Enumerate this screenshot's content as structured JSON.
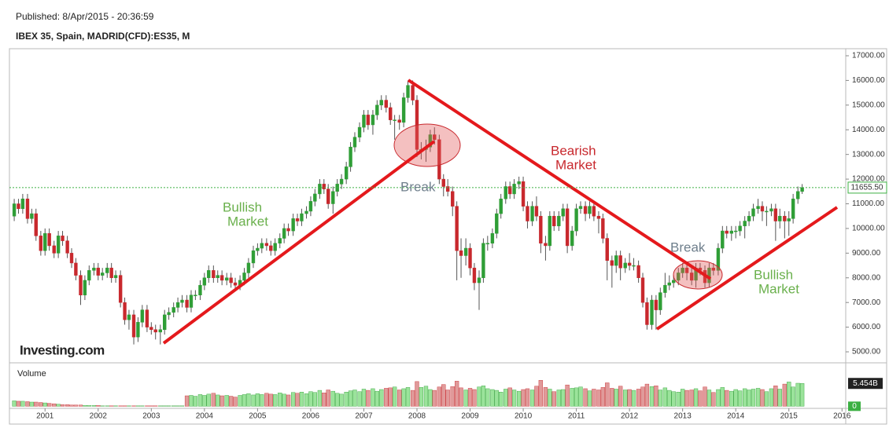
{
  "chart_data": {
    "type": "candlestick",
    "subtitle": "Published: 8/Apr/2015 - 20:36:59",
    "title": "IBEX 35, Spain, MADRID(CFD):ES35, M",
    "logo": "Investing.com",
    "up_color": "#2f9e36",
    "down_color": "#c8282d",
    "xlim": [
      2000.33,
      2016.07
    ],
    "xticks": [
      2001,
      2002,
      2003,
      2004,
      2005,
      2006,
      2007,
      2008,
      2009,
      2010,
      2011,
      2012,
      2013,
      2014,
      2015,
      2016
    ],
    "ylim": [
      4555,
      17286
    ],
    "yticks": [
      {
        "value": 5000,
        "label": "5000.00"
      },
      {
        "value": 6000,
        "label": "6000.00"
      },
      {
        "value": 7000,
        "label": "7000.00"
      },
      {
        "value": 8000,
        "label": "8000.00"
      },
      {
        "value": 9000,
        "label": "9000.00"
      },
      {
        "value": 10000,
        "label": "10000.00"
      },
      {
        "value": 11000,
        "label": "11000.00"
      },
      {
        "value": 12000,
        "label": "12000.00"
      },
      {
        "value": 13000,
        "label": "13000.00"
      },
      {
        "value": 14000,
        "label": "14000.00"
      },
      {
        "value": 15000,
        "label": "15000.00"
      },
      {
        "value": 16000,
        "label": "16000.00"
      },
      {
        "value": 17000,
        "label": "17000.00"
      }
    ],
    "last_close_label": "11655.50",
    "x": [
      2000.42,
      2000.5,
      2000.58,
      2000.67,
      2000.75,
      2000.83,
      2000.92,
      2001,
      2001.08,
      2001.17,
      2001.25,
      2001.33,
      2001.42,
      2001.5,
      2001.58,
      2001.67,
      2001.75,
      2001.83,
      2001.92,
      2002,
      2002.08,
      2002.17,
      2002.25,
      2002.33,
      2002.42,
      2002.5,
      2002.58,
      2002.67,
      2002.75,
      2002.83,
      2002.92,
      2003,
      2003.08,
      2003.17,
      2003.25,
      2003.33,
      2003.42,
      2003.5,
      2003.58,
      2003.67,
      2003.75,
      2003.83,
      2003.92,
      2004,
      2004.08,
      2004.17,
      2004.25,
      2004.33,
      2004.42,
      2004.5,
      2004.58,
      2004.67,
      2004.75,
      2004.83,
      2004.92,
      2005,
      2005.08,
      2005.17,
      2005.25,
      2005.33,
      2005.42,
      2005.5,
      2005.58,
      2005.67,
      2005.75,
      2005.83,
      2005.92,
      2006,
      2006.08,
      2006.17,
      2006.25,
      2006.33,
      2006.42,
      2006.5,
      2006.58,
      2006.67,
      2006.75,
      2006.83,
      2006.92,
      2007,
      2007.08,
      2007.17,
      2007.25,
      2007.33,
      2007.42,
      2007.5,
      2007.58,
      2007.67,
      2007.75,
      2007.83,
      2007.92,
      2008,
      2008.08,
      2008.17,
      2008.25,
      2008.33,
      2008.42,
      2008.5,
      2008.58,
      2008.67,
      2008.75,
      2008.83,
      2008.92,
      2009,
      2009.08,
      2009.17,
      2009.25,
      2009.33,
      2009.42,
      2009.5,
      2009.58,
      2009.67,
      2009.75,
      2009.83,
      2009.92,
      2010,
      2010.08,
      2010.17,
      2010.25,
      2010.33,
      2010.42,
      2010.5,
      2010.58,
      2010.67,
      2010.75,
      2010.83,
      2010.92,
      2011,
      2011.08,
      2011.17,
      2011.25,
      2011.33,
      2011.42,
      2011.5,
      2011.58,
      2011.67,
      2011.75,
      2011.83,
      2011.92,
      2012,
      2012.08,
      2012.17,
      2012.25,
      2012.33,
      2012.42,
      2012.5,
      2012.58,
      2012.67,
      2012.75,
      2012.83,
      2012.92,
      2013,
      2013.08,
      2013.17,
      2013.25,
      2013.33,
      2013.42,
      2013.5,
      2013.58,
      2013.67,
      2013.75,
      2013.83,
      2013.92,
      2014,
      2014.08,
      2014.17,
      2014.25,
      2014.33,
      2014.42,
      2014.5,
      2014.58,
      2014.67,
      2014.75,
      2014.83,
      2014.92,
      2015,
      2015.08,
      2015.17,
      2015.25
    ],
    "open": [
      10500,
      11000,
      10800,
      11200,
      10400,
      10600,
      9700,
      9100,
      9800,
      9300,
      9000,
      9700,
      9500,
      9000,
      8600,
      8100,
      7300,
      7900,
      8300,
      8400,
      8100,
      8200,
      8400,
      8000,
      8100,
      7000,
      6300,
      6500,
      5600,
      6200,
      6700,
      6000,
      5900,
      5800,
      5900,
      6500,
      6600,
      6800,
      7000,
      7100,
      6800,
      7300,
      7300,
      7700,
      8000,
      8300,
      8000,
      8100,
      7900,
      8000,
      7800,
      7700,
      7900,
      8200,
      8600,
      9100,
      9200,
      9400,
      9300,
      9100,
      9400,
      9600,
      10000,
      9900,
      10400,
      10300,
      10600,
      10700,
      11100,
      11400,
      11800,
      11600,
      11000,
      11500,
      11800,
      12000,
      12500,
      13300,
      13700,
      14100,
      14600,
      14200,
      14600,
      15000,
      15200,
      14900,
      14400,
      14400,
      14300,
      15300,
      15800,
      15200,
      13200,
      13200,
      13300,
      13800,
      13600,
      12000,
      11700,
      11500,
      10900,
      9100,
      8900,
      9200,
      8400,
      7800,
      8000,
      9400,
      9400,
      9800,
      10600,
      11200,
      11700,
      11400,
      11800,
      11900,
      10900,
      10300,
      10900,
      10500,
      9400,
      9300,
      10500,
      10100,
      10500,
      10800,
      9300,
      9900,
      10800,
      10900,
      10600,
      10900,
      10500,
      10400,
      9600,
      8700,
      8500,
      8900,
      8400,
      8600,
      8500,
      8500,
      8000,
      7000,
      6100,
      7100,
      6700,
      7400,
      7700,
      7800,
      7900,
      8200,
      8400,
      8200,
      7900,
      8400,
      8300,
      7800,
      8400,
      8300,
      9200,
      9900,
      9800,
      9900,
      9900,
      10100,
      10300,
      10500,
      10800,
      10900,
      10700,
      10700,
      10800,
      10300,
      10500,
      10300,
      10400,
      11200,
      11500
    ],
    "high": [
      11200,
      11200,
      11400,
      11400,
      10800,
      10800,
      9900,
      10000,
      10000,
      9500,
      9900,
      9900,
      9700,
      9200,
      8800,
      8300,
      8100,
      8500,
      8600,
      8600,
      8400,
      8600,
      8600,
      8300,
      8300,
      7200,
      6700,
      6700,
      6400,
      6900,
      6900,
      6200,
      6100,
      6100,
      6700,
      6800,
      7000,
      7200,
      7300,
      7300,
      7500,
      7500,
      7900,
      8200,
      8500,
      8500,
      8300,
      8300,
      8200,
      8200,
      8000,
      8100,
      8400,
      8800,
      9300,
      9400,
      9600,
      9600,
      9500,
      9600,
      9800,
      10200,
      10200,
      10600,
      10600,
      10800,
      10900,
      11300,
      11600,
      12000,
      12000,
      11800,
      11700,
      12000,
      12200,
      12700,
      13500,
      13900,
      14300,
      14800,
      14800,
      14800,
      15200,
      15400,
      15400,
      15100,
      14600,
      14600,
      15500,
      16000,
      16000,
      15400,
      13500,
      13600,
      14000,
      14100,
      13800,
      12200,
      12000,
      11700,
      11100,
      9600,
      9600,
      9400,
      8600,
      8300,
      9600,
      9700,
      10000,
      10800,
      11400,
      11900,
      11900,
      12000,
      12100,
      12100,
      11100,
      11100,
      11300,
      10700,
      9700,
      10700,
      10700,
      10700,
      11000,
      11000,
      10100,
      11000,
      11100,
      11100,
      11100,
      11100,
      10700,
      10600,
      9800,
      8900,
      9100,
      9100,
      8800,
      9000,
      8800,
      8700,
      8200,
      7200,
      7300,
      7300,
      7600,
      8200,
      8100,
      8100,
      8400,
      8600,
      8600,
      8400,
      8600,
      8600,
      8500,
      8600,
      8600,
      9400,
      10100,
      10100,
      10100,
      10100,
      10300,
      10500,
      10700,
      11000,
      11200,
      11100,
      10900,
      11000,
      11000,
      10800,
      10700,
      10700,
      11400,
      11700,
      11800
    ],
    "low": [
      10300,
      10600,
      10600,
      10200,
      10200,
      9500,
      8900,
      8900,
      9100,
      8800,
      8800,
      9300,
      8800,
      8400,
      7900,
      6900,
      7100,
      7700,
      8100,
      7900,
      7900,
      8000,
      7800,
      7800,
      6800,
      6100,
      5900,
      5300,
      5400,
      6000,
      5800,
      5700,
      5500,
      5300,
      5700,
      6300,
      6400,
      6600,
      6800,
      6600,
      6600,
      7100,
      7100,
      7500,
      7800,
      7800,
      7800,
      7700,
      7700,
      7600,
      7500,
      7500,
      7700,
      8000,
      8400,
      8900,
      9000,
      9100,
      8900,
      8900,
      9200,
      9400,
      9700,
      9700,
      10100,
      10100,
      10400,
      10500,
      10900,
      11200,
      11400,
      10800,
      10600,
      11300,
      11600,
      11800,
      12300,
      13100,
      13500,
      13900,
      14000,
      13800,
      14400,
      14800,
      14700,
      14200,
      13600,
      14000,
      14100,
      15100,
      15000,
      12900,
      12800,
      12700,
      13100,
      13400,
      11800,
      11300,
      11300,
      10500,
      7900,
      8000,
      8500,
      8100,
      7500,
      6700,
      7800,
      9100,
      9200,
      9600,
      10400,
      11000,
      11200,
      11200,
      11600,
      10700,
      10000,
      10100,
      10300,
      9000,
      8700,
      9100,
      9900,
      9900,
      10300,
      9000,
      9100,
      9700,
      10600,
      10300,
      10400,
      10300,
      9800,
      9400,
      7900,
      7600,
      8200,
      7900,
      8200,
      8300,
      8300,
      7800,
      6800,
      5900,
      5900,
      5900,
      6500,
      7200,
      7500,
      7600,
      7700,
      8000,
      7900,
      7700,
      7600,
      8100,
      7600,
      7600,
      8100,
      8100,
      9000,
      9600,
      9500,
      9600,
      9700,
      9600,
      10100,
      10300,
      10600,
      10300,
      10100,
      10500,
      9500,
      10000,
      9600,
      9700,
      10200,
      11000,
      11400
    ],
    "close": [
      11000,
      10800,
      11200,
      10400,
      10600,
      9700,
      9100,
      9800,
      9300,
      9000,
      9700,
      9500,
      9000,
      8600,
      8100,
      7300,
      7900,
      8300,
      8400,
      8100,
      8200,
      8400,
      8000,
      8100,
      7000,
      6300,
      6500,
      5600,
      6200,
      6700,
      6000,
      5900,
      5800,
      5900,
      6500,
      6600,
      6800,
      7000,
      7100,
      6800,
      7300,
      7300,
      7700,
      8000,
      8300,
      8000,
      8100,
      7900,
      8000,
      7800,
      7700,
      7900,
      8200,
      8600,
      9100,
      9200,
      9400,
      9300,
      9100,
      9400,
      9600,
      10000,
      9900,
      10400,
      10300,
      10600,
      10700,
      11100,
      11400,
      11800,
      11600,
      11000,
      11500,
      11800,
      12000,
      12500,
      13300,
      13700,
      14100,
      14600,
      14200,
      14600,
      15000,
      15200,
      14900,
      14400,
      14400,
      14300,
      15300,
      15800,
      15200,
      13200,
      13200,
      13300,
      13800,
      13600,
      12000,
      11700,
      11500,
      10900,
      9100,
      8900,
      9200,
      8400,
      7800,
      8000,
      9400,
      9400,
      9800,
      10600,
      11200,
      11700,
      11400,
      11800,
      11900,
      10900,
      10300,
      10900,
      10500,
      9400,
      9300,
      10500,
      10100,
      10500,
      10800,
      9300,
      9900,
      10800,
      10900,
      10600,
      10900,
      10500,
      10400,
      9600,
      8700,
      8500,
      8900,
      8400,
      8600,
      8500,
      8500,
      8000,
      7000,
      6100,
      7100,
      6700,
      7400,
      7700,
      7800,
      7900,
      8200,
      8400,
      8200,
      7900,
      8400,
      8300,
      7800,
      8400,
      8300,
      9200,
      9900,
      9800,
      9900,
      9900,
      10100,
      10300,
      10500,
      10800,
      10900,
      10700,
      10700,
      10800,
      10300,
      10500,
      10300,
      10400,
      11200,
      11500,
      11655.5
    ],
    "volume": {
      "name": "Volume",
      "up_color": "#9be39b",
      "down_color": "#e09a9a",
      "ylim": [
        -0.5,
        10
      ],
      "yticks": [
        0
      ],
      "last_label": "5.454B",
      "values": [
        1.3,
        1.2,
        1.2,
        1.1,
        1.0,
        1.0,
        0.9,
        0.8,
        0.7,
        0.6,
        0.5,
        0.4,
        0.4,
        0.3,
        0.3,
        0.3,
        0.2,
        0.2,
        0.2,
        0.2,
        0.1,
        0.1,
        0.1,
        0.1,
        0.1,
        0.1,
        0.1,
        0.1,
        0.1,
        0.1,
        0.1,
        0.1,
        0.1,
        0.1,
        0.1,
        0.1,
        0.1,
        0.1,
        0.1,
        2.5,
        2.6,
        2.4,
        2.8,
        2.6,
        2.9,
        3.1,
        2.7,
        2.5,
        2.6,
        2.4,
        2.2,
        2.6,
        2.8,
        3.0,
        2.7,
        3.0,
        2.8,
        3.1,
        2.9,
        2.8,
        3.2,
        2.9,
        2.7,
        3.3,
        3.1,
        3.4,
        3.0,
        3.5,
        3.3,
        3.8,
        3.2,
        3.9,
        3.6,
        3.1,
        2.9,
        3.4,
        3.7,
        3.9,
        3.5,
        4.1,
        3.8,
        4.2,
        3.6,
        4.0,
        4.3,
        4.4,
        4.6,
        3.9,
        4.2,
        4.5,
        3.8,
        5.9,
        4.5,
        4.8,
        4.0,
        3.8,
        4.6,
        5.2,
        3.9,
        4.7,
        6.0,
        4.4,
        3.9,
        4.3,
        4.0,
        4.6,
        4.9,
        4.2,
        4.0,
        3.8,
        3.4,
        4.1,
        4.4,
        3.9,
        3.6,
        4.0,
        4.2,
        3.9,
        4.8,
        6.2,
        4.5,
        4.1,
        3.5,
        3.9,
        4.0,
        5.1,
        4.3,
        4.4,
        4.6,
        4.2,
        3.7,
        4.1,
        3.9,
        4.5,
        5.6,
        4.3,
        4.1,
        4.8,
        3.9,
        4.0,
        3.8,
        4.1,
        4.6,
        5.3,
        4.7,
        4.9,
        3.9,
        4.4,
        3.8,
        3.5,
        3.4,
        4.1,
        3.8,
        3.9,
        4.2,
        3.7,
        4.6,
        3.9,
        3.3,
        4.0,
        4.5,
        3.8,
        3.6,
        4.0,
        3.7,
        4.2,
        3.9,
        4.1,
        4.3,
        4.0,
        3.5,
        4.2,
        4.9,
        4.1,
        5.3,
        5.8,
        4.6,
        5.5,
        5.454
      ]
    },
    "annotations": [
      {
        "lines": [
          "Bullish",
          "Market"
        ],
        "color": "#6ab04c"
      },
      {
        "lines": [
          "Break"
        ],
        "color": "#6f7f8c"
      },
      {
        "lines": [
          "Bearish",
          "Market"
        ],
        "color": "#c8282d"
      },
      {
        "lines": [
          "Break"
        ],
        "color": "#6f7f8c"
      },
      {
        "lines": [
          "Bullish",
          "Market"
        ],
        "color": "#6ab04c"
      }
    ]
  }
}
